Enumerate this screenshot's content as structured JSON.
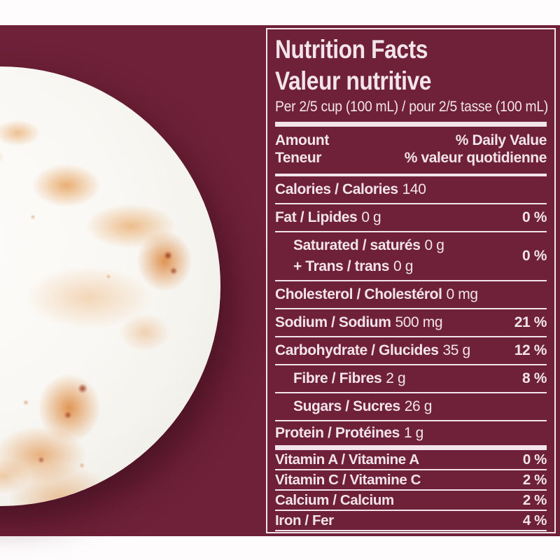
{
  "colors": {
    "background": "#6e2138",
    "page_band": "#fefcfd",
    "label_text": "#f2e4ea",
    "plate": "#f8f6f1",
    "sauce": "#dd8a33"
  },
  "label": {
    "title_en": "Nutrition Facts",
    "title_fr": "Valeur nutritive",
    "serving": "Per 2/5 cup (100 mL) / pour 2/5 tasse (100 mL)",
    "header": {
      "amount_en": "Amount",
      "amount_fr": "Teneur",
      "dv_en": "% Daily Value",
      "dv_fr": "% valeur quotidienne"
    },
    "rows": [
      {
        "name": "Calories / Calories",
        "qty": "140",
        "pct": ""
      },
      {
        "name": "Fat / Lipides",
        "qty": "0 g",
        "pct": "0 %"
      },
      {
        "name": "Saturated / saturés",
        "qty": "0 g",
        "name2": "+ Trans / trans",
        "qty2": "0 g",
        "pct": "0 %"
      },
      {
        "name": "Cholesterol / Cholestérol",
        "qty": "0 mg",
        "pct": ""
      },
      {
        "name": "Sodium / Sodium",
        "qty": "500 mg",
        "pct": "21 %"
      },
      {
        "name": "Carbohydrate / Glucides",
        "qty": "35 g",
        "pct": "12 %"
      },
      {
        "name": "Fibre / Fibres",
        "qty": "2 g",
        "pct": "8 %"
      },
      {
        "name": "Sugars / Sucres",
        "qty": "26 g",
        "pct": ""
      },
      {
        "name": "Protein / Protéines",
        "qty": "1 g",
        "pct": ""
      }
    ],
    "micronutrients": [
      {
        "name": "Vitamin A / Vitamine A",
        "pct": "0 %"
      },
      {
        "name": "Vitamin C / Vitamine C",
        "pct": "2 %"
      },
      {
        "name": "Calcium / Calcium",
        "pct": "2 %"
      },
      {
        "name": "Iron / Fer",
        "pct": "4 %"
      }
    ]
  }
}
